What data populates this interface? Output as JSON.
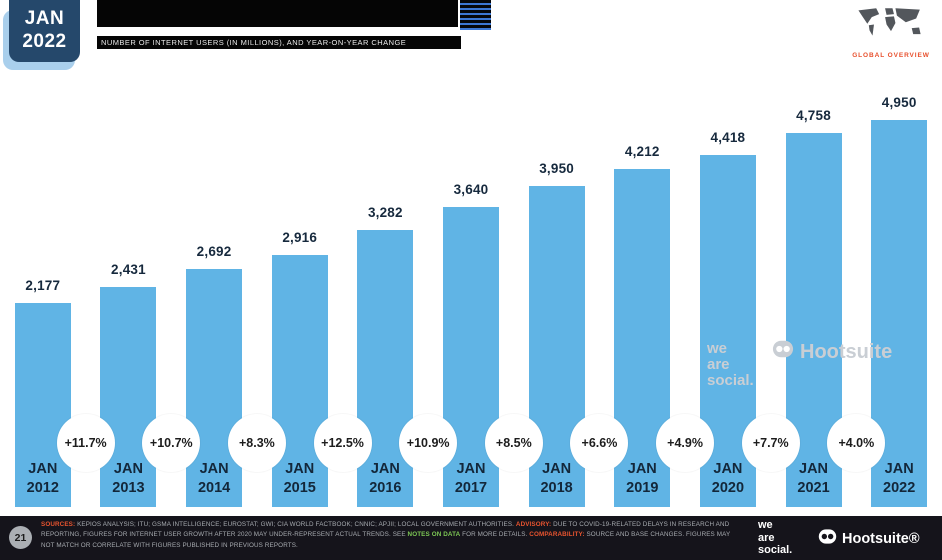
{
  "header": {
    "date_line1": "JAN",
    "date_line2": "2022",
    "region_label": "GLOBAL OVERVIEW"
  },
  "chart_data": {
    "type": "bar",
    "subtitle": "NUMBER OF INTERNET USERS (IN MILLIONS), AND YEAR-ON-YEAR CHANGE",
    "categories": [
      "JAN 2012",
      "JAN 2013",
      "JAN 2014",
      "JAN 2015",
      "JAN 2016",
      "JAN 2017",
      "JAN 2018",
      "JAN 2019",
      "JAN 2020",
      "JAN 2021",
      "JAN 2022"
    ],
    "values": [
      2177,
      2431,
      2692,
      2916,
      3282,
      3640,
      3950,
      4212,
      4418,
      4758,
      4950
    ],
    "value_labels": [
      "2,177",
      "2,431",
      "2,692",
      "2,916",
      "3,282",
      "3,640",
      "3,950",
      "4,212",
      "4,418",
      "4,758",
      "4,950"
    ],
    "yoy_change_labels": [
      "+11.7%",
      "+10.7%",
      "+8.3%",
      "+12.5%",
      "+10.9%",
      "+8.5%",
      "+6.6%",
      "+4.9%",
      "+7.7%",
      "+4.0%"
    ],
    "unit": "millions",
    "ylim": [
      0,
      5000
    ],
    "grid": false,
    "legend": "none",
    "bar_color": "#60B4E5"
  },
  "colors": {
    "bar_blue": "#60B4E5",
    "navy_text": "#16293D",
    "badge_navy": "#25486B",
    "badge_shadow_blue": "#A9CFEC",
    "accent_orange": "#E8542F",
    "accent_green": "#7DC855",
    "footer_bg": "#15141b",
    "watermark_gray": "#C9CED4"
  },
  "watermark": {
    "we_are_social_lines": [
      "we",
      "are",
      "social."
    ],
    "hootsuite": "Hootsuite"
  },
  "footer": {
    "page_number": "21",
    "segments": [
      "SOURCES:",
      " KEPIOS ANALYSIS; ITU; GSMA INTELLIGENCE; EUROSTAT; GWI; CIA WORLD FACTBOOK; CNNIC; APJII; LOCAL GOVERNMENT AUTHORITIES. ",
      "ADVISORY:",
      " DUE TO COVID-19-RELATED DELAYS IN RESEARCH AND REPORTING, FIGURES FOR INTERNET USER GROWTH AFTER 2020 MAY UNDER-REPRESENT ACTUAL TRENDS. SEE ",
      "NOTES ON DATA",
      " FOR MORE DETAILS. ",
      "COMPARABILITY:",
      " SOURCE AND BASE CHANGES. FIGURES MAY NOT MATCH OR CORRELATE WITH FIGURES PUBLISHED IN PREVIOUS REPORTS."
    ],
    "we_are_social_lines": [
      "we",
      "are",
      "social."
    ],
    "hootsuite_logo": "Hootsuite®"
  }
}
